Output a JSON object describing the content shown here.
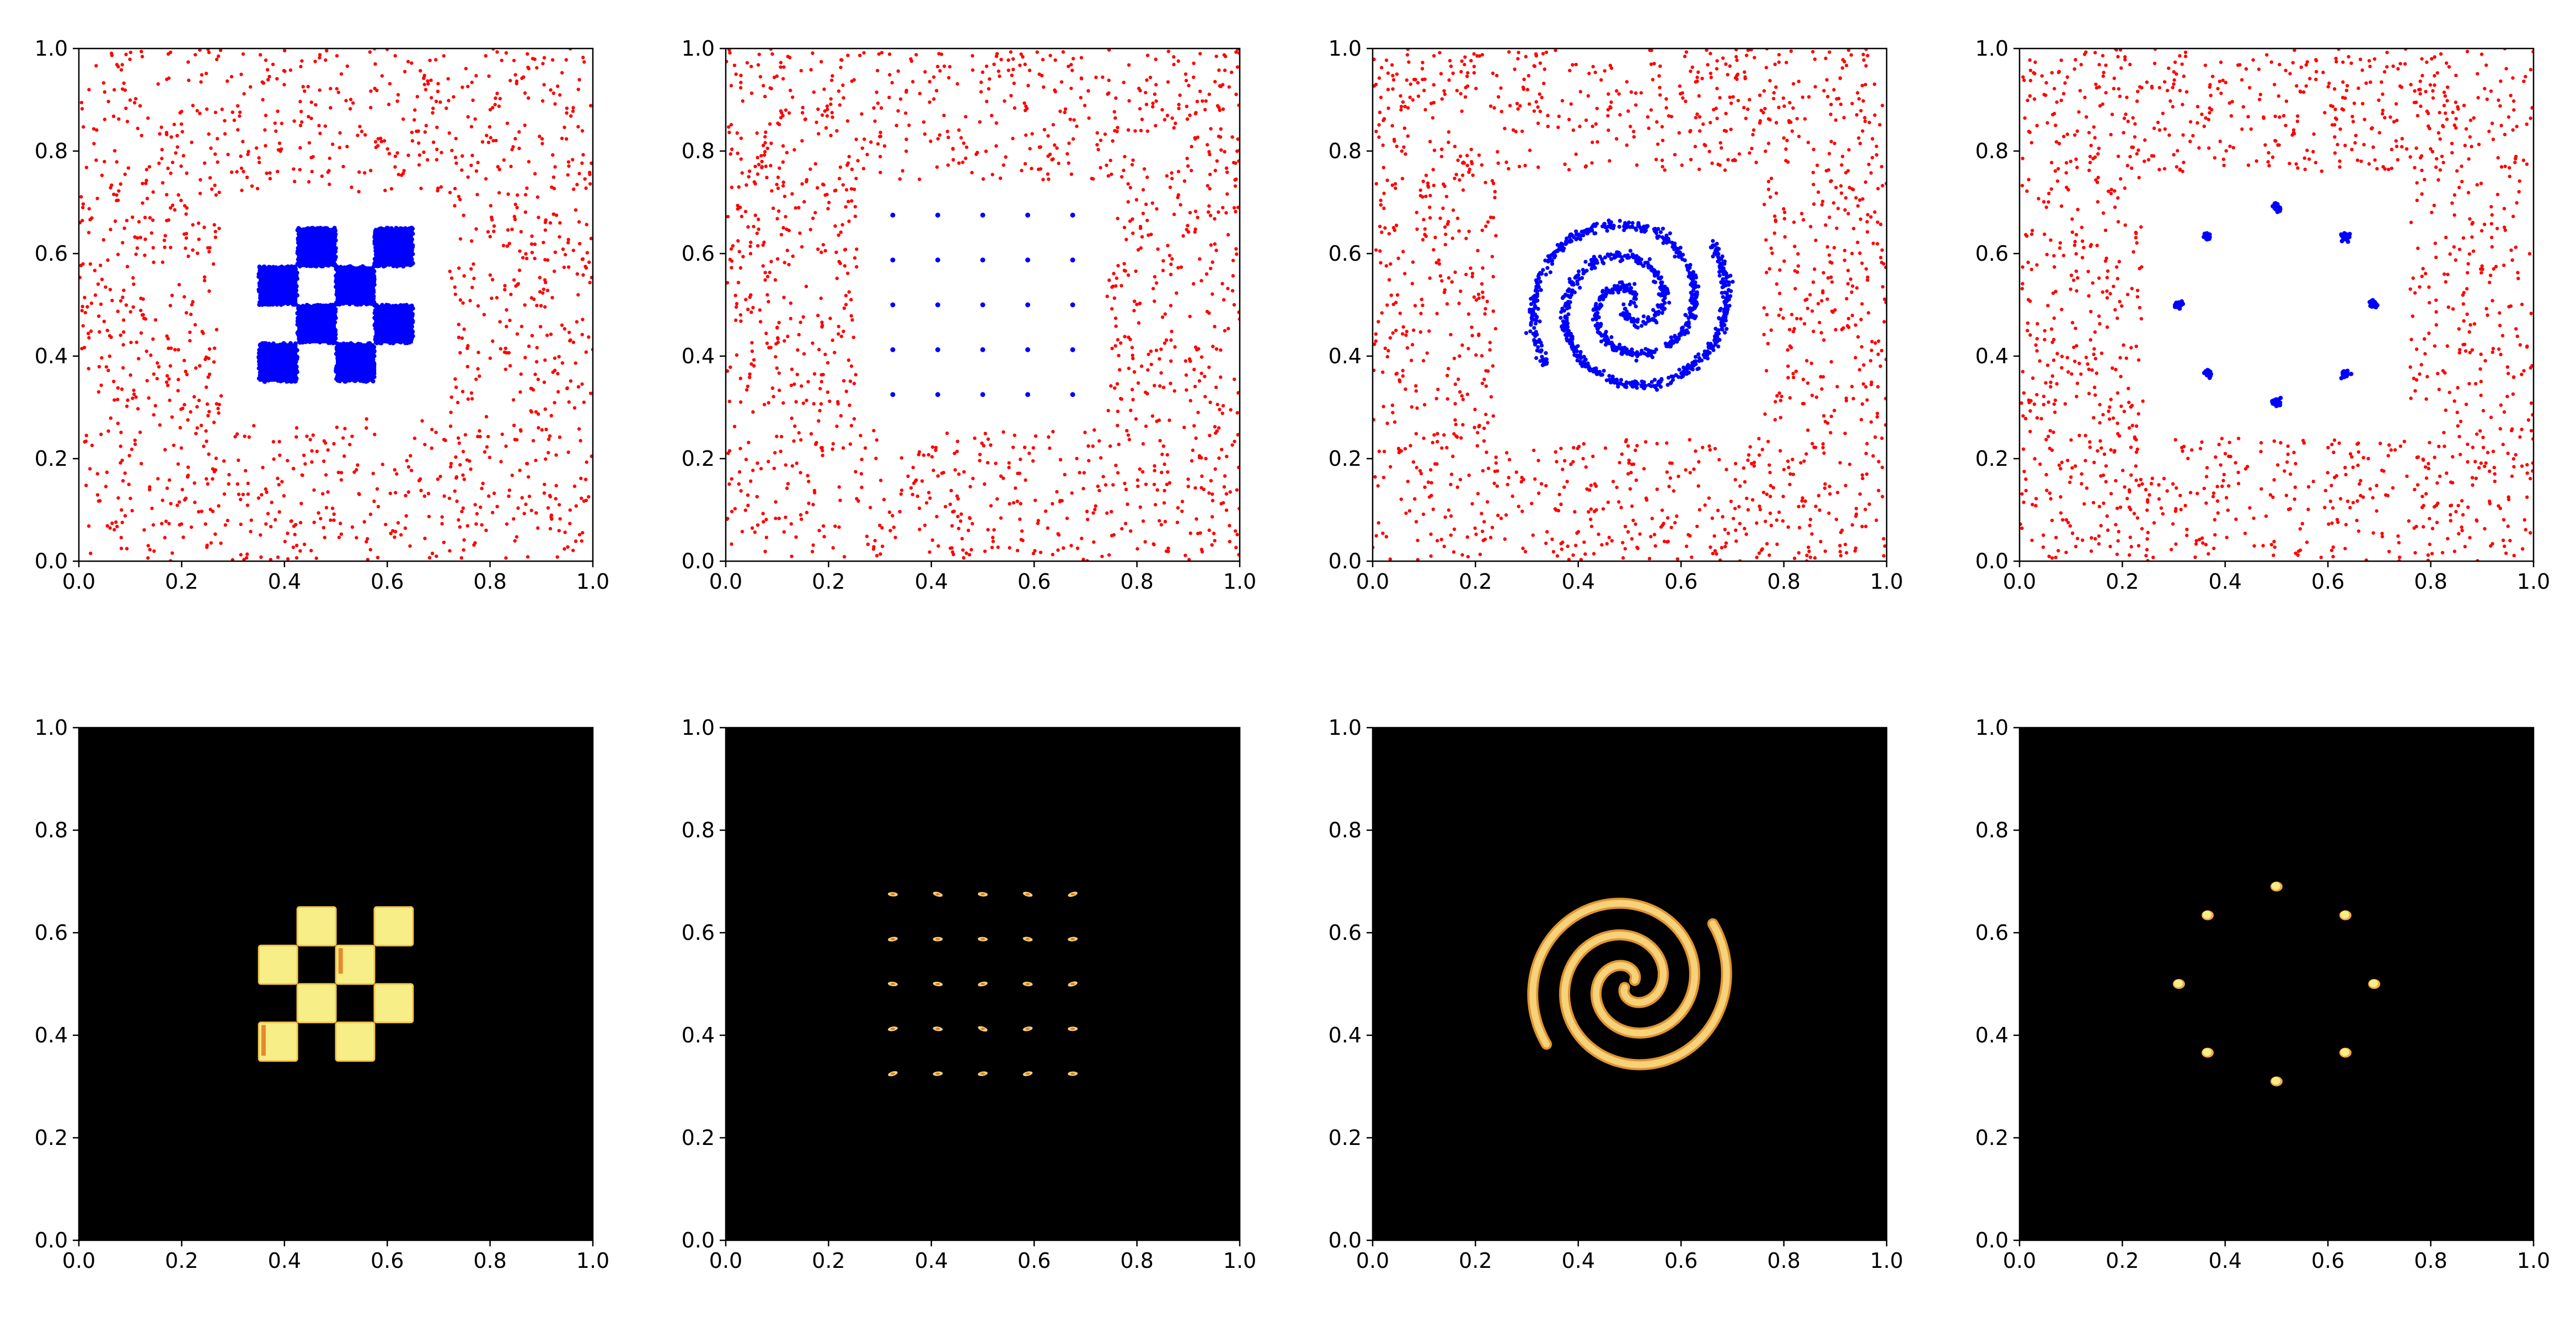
{
  "figure": {
    "layout": "2 rows x 4 columns",
    "description_free": true
  },
  "chart_data": [
    {
      "type": "scatter",
      "row": 1,
      "col": 1,
      "shape": "checkerboard",
      "xlim": [
        0.0,
        1.0
      ],
      "ylim": [
        0.0,
        1.0
      ],
      "xticks": [
        "0.0",
        "0.2",
        "0.4",
        "0.6",
        "0.8",
        "1.0"
      ],
      "yticks": [
        "0.0",
        "0.2",
        "0.4",
        "0.6",
        "0.8",
        "1.0"
      ],
      "background_color": "#ff0000",
      "target_color": "#0000ff",
      "background_samples": {
        "distribution": "uniform",
        "x_range": [
          0,
          1
        ],
        "y_range": [
          0,
          1
        ],
        "excluded_box": [
          0.28,
          0.72
        ],
        "count": 1300
      },
      "target_squares": [
        {
          "x": [
            0.35,
            0.425
          ],
          "y": [
            0.35,
            0.425
          ]
        },
        {
          "x": [
            0.5,
            0.575
          ],
          "y": [
            0.35,
            0.425
          ]
        },
        {
          "x": [
            0.425,
            0.5
          ],
          "y": [
            0.425,
            0.5
          ]
        },
        {
          "x": [
            0.575,
            0.65
          ],
          "y": [
            0.425,
            0.5
          ]
        },
        {
          "x": [
            0.35,
            0.425
          ],
          "y": [
            0.5,
            0.575
          ]
        },
        {
          "x": [
            0.5,
            0.575
          ],
          "y": [
            0.5,
            0.575
          ]
        },
        {
          "x": [
            0.425,
            0.5
          ],
          "y": [
            0.575,
            0.65
          ]
        },
        {
          "x": [
            0.575,
            0.65
          ],
          "y": [
            0.575,
            0.65
          ]
        }
      ],
      "grid": false
    },
    {
      "type": "scatter",
      "row": 1,
      "col": 2,
      "shape": "grid of points",
      "xlim": [
        0.0,
        1.0
      ],
      "ylim": [
        0.0,
        1.0
      ],
      "xticks": [
        "0.0",
        "0.2",
        "0.4",
        "0.6",
        "0.8",
        "1.0"
      ],
      "yticks": [
        "0.0",
        "0.2",
        "0.4",
        "0.6",
        "0.8",
        "1.0"
      ],
      "background_color": "#ff0000",
      "target_color": "#0000ff",
      "background_samples": {
        "distribution": "uniform",
        "x_range": [
          0,
          1
        ],
        "y_range": [
          0,
          1
        ],
        "excluded_box": [
          0.26,
          0.74
        ],
        "count": 1300
      },
      "target_points_x": [
        0.325,
        0.4125,
        0.5,
        0.5875,
        0.675
      ],
      "target_points_y": [
        0.325,
        0.4125,
        0.5,
        0.5875,
        0.675
      ],
      "grid": false
    },
    {
      "type": "scatter",
      "row": 1,
      "col": 3,
      "shape": "two-arm spiral",
      "xlim": [
        0.0,
        1.0
      ],
      "ylim": [
        0.0,
        1.0
      ],
      "xticks": [
        "0.0",
        "0.2",
        "0.4",
        "0.6",
        "0.8",
        "1.0"
      ],
      "yticks": [
        "0.0",
        "0.2",
        "0.4",
        "0.6",
        "0.8",
        "1.0"
      ],
      "background_color": "#ff0000",
      "target_color": "#0000ff",
      "background_samples": {
        "distribution": "uniform",
        "x_range": [
          0,
          1
        ],
        "y_range": [
          0,
          1
        ],
        "excluded_box": [
          0.24,
          0.76
        ],
        "count": 1300
      },
      "spiral": {
        "center": [
          0.5,
          0.5
        ],
        "max_radius": 0.2,
        "turns": 1.6,
        "arms": 2
      },
      "grid": false
    },
    {
      "type": "scatter",
      "row": 1,
      "col": 4,
      "shape": "ring of 8 gaussians",
      "xlim": [
        0.0,
        1.0
      ],
      "ylim": [
        0.0,
        1.0
      ],
      "xticks": [
        "0.0",
        "0.2",
        "0.4",
        "0.6",
        "0.8",
        "1.0"
      ],
      "yticks": [
        "0.0",
        "0.2",
        "0.4",
        "0.6",
        "0.8",
        "1.0"
      ],
      "background_color": "#ff0000",
      "target_color": "#0000ff",
      "background_samples": {
        "distribution": "uniform",
        "x_range": [
          0,
          1
        ],
        "y_range": [
          0,
          1
        ],
        "excluded_box": [
          0.24,
          0.76
        ],
        "count": 1300
      },
      "target_centers": [
        [
          0.69,
          0.5
        ],
        [
          0.634,
          0.634
        ],
        [
          0.5,
          0.69
        ],
        [
          0.366,
          0.634
        ],
        [
          0.31,
          0.5
        ],
        [
          0.366,
          0.366
        ],
        [
          0.5,
          0.31
        ],
        [
          0.634,
          0.366
        ]
      ],
      "grid": false
    },
    {
      "type": "heatmap",
      "row": 2,
      "col": 1,
      "shape": "checkerboard",
      "xlim": [
        0.0,
        1.0
      ],
      "ylim": [
        0.0,
        1.0
      ],
      "xticks": [
        "0.0",
        "0.2",
        "0.4",
        "0.6",
        "0.8",
        "1.0"
      ],
      "yticks": [
        "0.0",
        "0.2",
        "0.4",
        "0.6",
        "0.8",
        "1.0"
      ],
      "colormap": "hot",
      "background_color": "#000000",
      "density_color": "#f7ee87",
      "target_squares": [
        {
          "x": [
            0.35,
            0.425
          ],
          "y": [
            0.35,
            0.425
          ]
        },
        {
          "x": [
            0.5,
            0.575
          ],
          "y": [
            0.35,
            0.425
          ]
        },
        {
          "x": [
            0.425,
            0.5
          ],
          "y": [
            0.425,
            0.5
          ]
        },
        {
          "x": [
            0.575,
            0.65
          ],
          "y": [
            0.425,
            0.5
          ]
        },
        {
          "x": [
            0.35,
            0.425
          ],
          "y": [
            0.5,
            0.575
          ]
        },
        {
          "x": [
            0.5,
            0.575
          ],
          "y": [
            0.5,
            0.575
          ]
        },
        {
          "x": [
            0.425,
            0.5
          ],
          "y": [
            0.575,
            0.65
          ]
        },
        {
          "x": [
            0.575,
            0.65
          ],
          "y": [
            0.575,
            0.65
          ]
        }
      ],
      "grid": false
    },
    {
      "type": "heatmap",
      "row": 2,
      "col": 2,
      "shape": "grid of points",
      "xlim": [
        0.0,
        1.0
      ],
      "ylim": [
        0.0,
        1.0
      ],
      "xticks": [
        "0.0",
        "0.2",
        "0.4",
        "0.6",
        "0.8",
        "1.0"
      ],
      "yticks": [
        "0.0",
        "0.2",
        "0.4",
        "0.6",
        "0.8",
        "1.0"
      ],
      "colormap": "hot",
      "background_color": "#000000",
      "density_color": "#f7ee87",
      "target_points_x": [
        0.325,
        0.4125,
        0.5,
        0.5875,
        0.675
      ],
      "target_points_y": [
        0.325,
        0.4125,
        0.5,
        0.5875,
        0.675
      ],
      "grid": false
    },
    {
      "type": "heatmap",
      "row": 2,
      "col": 3,
      "shape": "two-arm spiral",
      "xlim": [
        0.0,
        1.0
      ],
      "ylim": [
        0.0,
        1.0
      ],
      "xticks": [
        "0.0",
        "0.2",
        "0.4",
        "0.6",
        "0.8",
        "1.0"
      ],
      "yticks": [
        "0.0",
        "0.2",
        "0.4",
        "0.6",
        "0.8",
        "1.0"
      ],
      "colormap": "hot",
      "background_color": "#000000",
      "density_color": "#f7d27a",
      "spiral": {
        "center": [
          0.5,
          0.5
        ],
        "max_radius": 0.2,
        "turns": 1.6,
        "arms": 2
      },
      "grid": false
    },
    {
      "type": "heatmap",
      "row": 2,
      "col": 4,
      "shape": "ring of 8 gaussians",
      "xlim": [
        0.0,
        1.0
      ],
      "ylim": [
        0.0,
        1.0
      ],
      "xticks": [
        "0.0",
        "0.2",
        "0.4",
        "0.6",
        "0.8",
        "1.0"
      ],
      "yticks": [
        "0.0",
        "0.2",
        "0.4",
        "0.6",
        "0.8",
        "1.0"
      ],
      "colormap": "hot",
      "background_color": "#000000",
      "density_color": "#f7ee87",
      "target_centers": [
        [
          0.69,
          0.5
        ],
        [
          0.634,
          0.634
        ],
        [
          0.5,
          0.69
        ],
        [
          0.366,
          0.634
        ],
        [
          0.31,
          0.5
        ],
        [
          0.366,
          0.366
        ],
        [
          0.5,
          0.31
        ],
        [
          0.634,
          0.366
        ]
      ],
      "grid": false
    }
  ]
}
